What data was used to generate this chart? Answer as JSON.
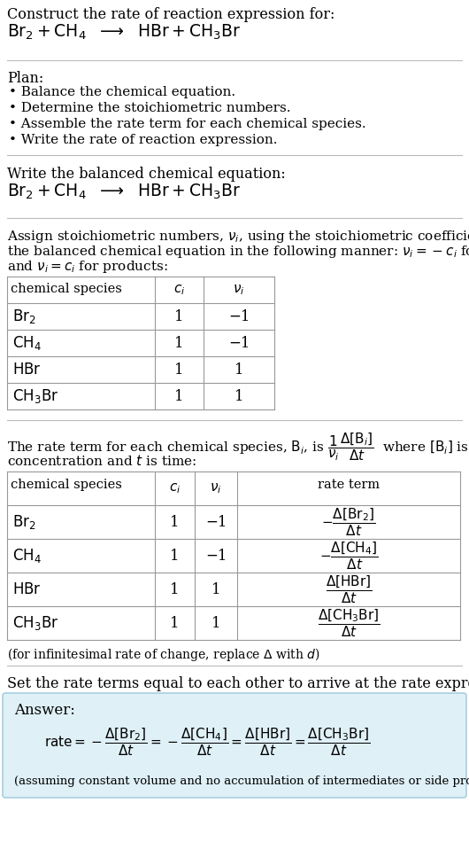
{
  "bg_color": "#ffffff",
  "text_color": "#000000",
  "answer_bg": "#dff0f7",
  "answer_border": "#a8cfe0",
  "title_line1": "Construct the rate of reaction expression for:",
  "plan_items": [
    "• Balance the chemical equation.",
    "• Determine the stoichiometric numbers.",
    "• Assemble the rate term for each chemical species.",
    "• Write the rate of reaction expression."
  ],
  "table1_species": [
    "Br_2",
    "CH_4",
    "HBr",
    "CH_3Br"
  ],
  "table1_ci": [
    "1",
    "1",
    "1",
    "1"
  ],
  "table1_nu": [
    "−1",
    "−1",
    "1",
    "1"
  ],
  "table2_species": [
    "Br_2",
    "CH_4",
    "HBr",
    "CH_3Br"
  ],
  "table2_ci": [
    "1",
    "1",
    "1",
    "1"
  ],
  "table2_nu": [
    "−1",
    "−1",
    "1",
    "1"
  ],
  "answer_label": "Answer:",
  "answer_note": "(assuming constant volume and no accumulation of intermediates or side products)",
  "infinitesimal_note": "(for infinitesimal rate of change, replace Δ with d)"
}
